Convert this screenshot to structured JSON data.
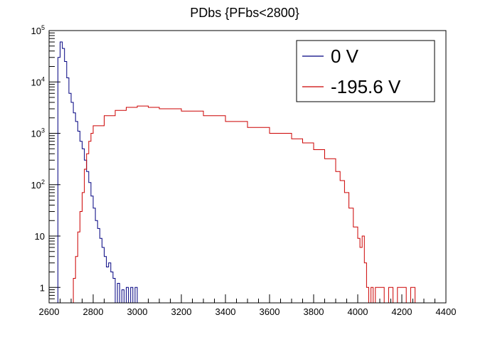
{
  "chart_data": {
    "type": "line",
    "title": "PDbs {PFbs<2800}",
    "xlabel": "",
    "ylabel": "",
    "xlim": [
      2600,
      4400
    ],
    "ylim": [
      0.5,
      100000
    ],
    "yscale": "log",
    "step": true,
    "grid": false,
    "legend_position": "top-right",
    "x_ticks": [
      "2600",
      "2800",
      "3000",
      "3200",
      "3400",
      "3600",
      "3800",
      "4000",
      "4200",
      "4400"
    ],
    "y_ticks": [
      {
        "value": 1,
        "base": "1",
        "exp": ""
      },
      {
        "value": 10,
        "base": "10",
        "exp": ""
      },
      {
        "value": 100,
        "base": "10",
        "exp": "2"
      },
      {
        "value": 1000,
        "base": "10",
        "exp": "3"
      },
      {
        "value": 10000,
        "base": "10",
        "exp": "4"
      },
      {
        "value": 100000,
        "base": "10",
        "exp": "5"
      }
    ],
    "series": [
      {
        "name": "0 V",
        "color": "#000080",
        "x": [
          2640,
          2650,
          2660,
          2670,
          2680,
          2690,
          2700,
          2710,
          2720,
          2730,
          2740,
          2750,
          2760,
          2770,
          2780,
          2790,
          2800,
          2810,
          2820,
          2830,
          2840,
          2850,
          2860,
          2870,
          2880,
          2890,
          2900,
          2910,
          2920,
          2930,
          2940,
          2950,
          2960,
          2970,
          2980,
          2990,
          3000
        ],
        "values": [
          30000,
          60000,
          45000,
          25000,
          12000,
          6000,
          4000,
          2500,
          1700,
          1100,
          700,
          500,
          300,
          180,
          110,
          60,
          35,
          20,
          14,
          9,
          6,
          4,
          2.5,
          3,
          2,
          1.5,
          0.4,
          1.2,
          0.4,
          0.9,
          0.4,
          1,
          0.4,
          1,
          0.4,
          1,
          0.4
        ]
      },
      {
        "name": "-195.6 V",
        "color": "#cc0000",
        "x": [
          2700,
          2710,
          2720,
          2730,
          2740,
          2750,
          2760,
          2770,
          2780,
          2790,
          2800,
          2850,
          2900,
          2950,
          3000,
          3050,
          3100,
          3200,
          3300,
          3400,
          3500,
          3600,
          3700,
          3750,
          3800,
          3850,
          3900,
          3920,
          3940,
          3960,
          3980,
          4000,
          4010,
          4020,
          4030,
          4040,
          4050,
          4060,
          4070,
          4080,
          4100,
          4120,
          4140,
          4160,
          4180,
          4200,
          4220,
          4240,
          4260,
          4280
        ],
        "values": [
          0.4,
          1.5,
          4,
          12,
          30,
          70,
          200,
          400,
          700,
          1000,
          1400,
          2200,
          2800,
          3200,
          3400,
          3200,
          3000,
          2700,
          2200,
          1700,
          1300,
          1000,
          780,
          650,
          480,
          320,
          180,
          120,
          70,
          35,
          15,
          9,
          6,
          10,
          3,
          1,
          0.4,
          1,
          0.4,
          1,
          1,
          0.4,
          1,
          0.4,
          1,
          1,
          0.4,
          1,
          0.4,
          0.4
        ]
      }
    ]
  }
}
